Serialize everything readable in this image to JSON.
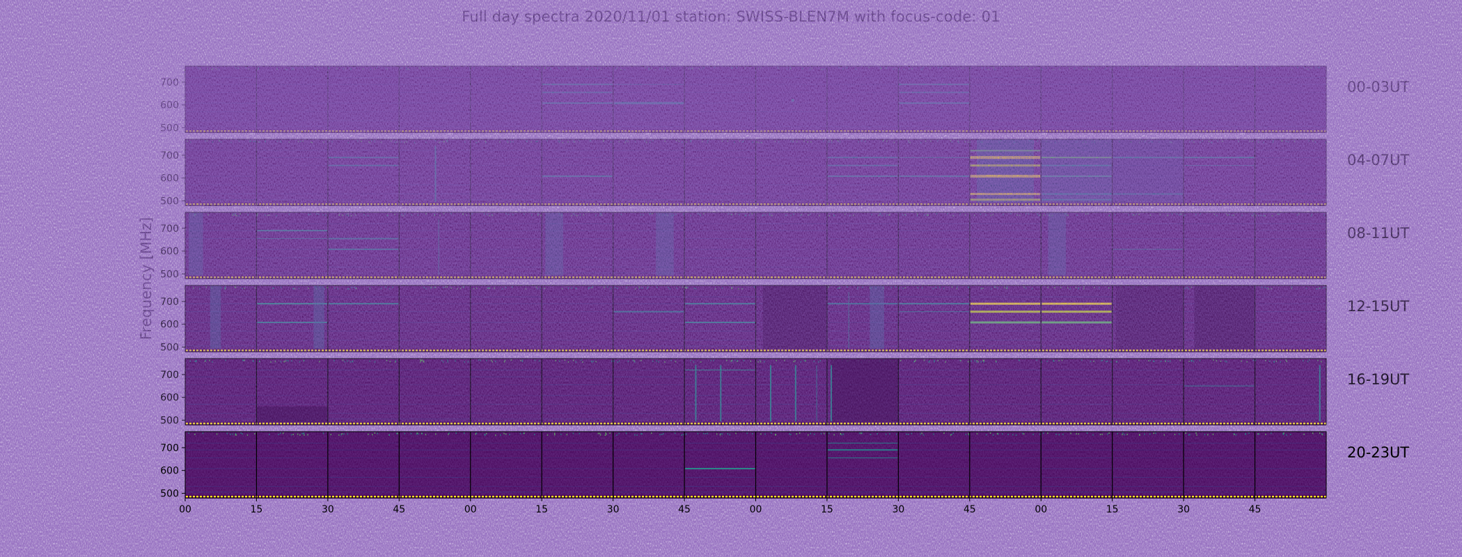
{
  "chart_data": {
    "type": "heatmap",
    "title": "Full day spectra 2020/11/01 station: SWISS-BLEN7M with focus-code: 01",
    "ylabel": "Frequency [MHz]",
    "xlabel": "",
    "colormap": "viridis",
    "colors": {
      "low": "#440154",
      "mid": "#21918c",
      "high": "#fde725"
    },
    "rows": 6,
    "panels_per_row": 16,
    "panel_minutes": 15,
    "ylim": [
      480,
      770
    ],
    "yticks": [
      500,
      600,
      700
    ],
    "xticks": [
      "00",
      "15",
      "30",
      "45",
      "00",
      "15",
      "30",
      "45",
      "00",
      "15",
      "30",
      "45",
      "00",
      "15",
      "30",
      "45"
    ],
    "row_labels": [
      "00-03UT",
      "04-07UT",
      "08-11UT",
      "12-15UT",
      "16-19UT",
      "20-23UT"
    ],
    "grid": false
  }
}
